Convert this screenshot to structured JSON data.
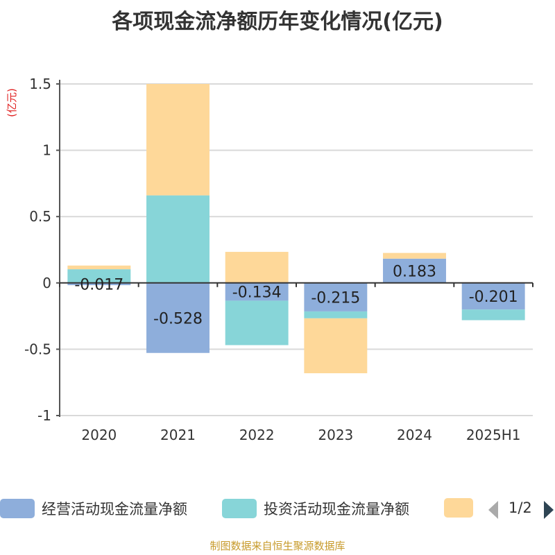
{
  "title": "各项现金流净额历年变化情况(亿元)",
  "footer": "制图数据来自恒生聚源数据库",
  "legend_page": "1/2",
  "chart_data": {
    "type": "bar",
    "stacked": true,
    "title": "各项现金流净额历年变化情况(亿元)",
    "ylabel": "(亿元)",
    "ylim": [
      -1,
      1.5
    ],
    "yticks": [
      "1.5",
      "1",
      "0.5",
      "0",
      "-0.5",
      "-1"
    ],
    "grid": true,
    "legend_position": "bottom",
    "categories": [
      "2020",
      "2021",
      "2022",
      "2023",
      "2024",
      "2025H1"
    ],
    "series": [
      {
        "name": "经营活动现金流量净额",
        "color": "#8eaedb",
        "values": [
          -0.017,
          -0.528,
          -0.134,
          -0.215,
          0.183,
          -0.201
        ],
        "labels": [
          "-0.017",
          "-0.528",
          "-0.134",
          "-0.215",
          "0.183",
          "-0.201"
        ]
      },
      {
        "name": "投资活动现金流量净额",
        "color": "#87d5d8",
        "values": [
          0.103,
          0.66,
          -0.335,
          -0.052,
          0.0,
          -0.08
        ]
      },
      {
        "name": "",
        "color": "#fed899",
        "values": [
          0.028,
          0.84,
          0.234,
          -0.414,
          0.043,
          0.005
        ]
      }
    ]
  }
}
